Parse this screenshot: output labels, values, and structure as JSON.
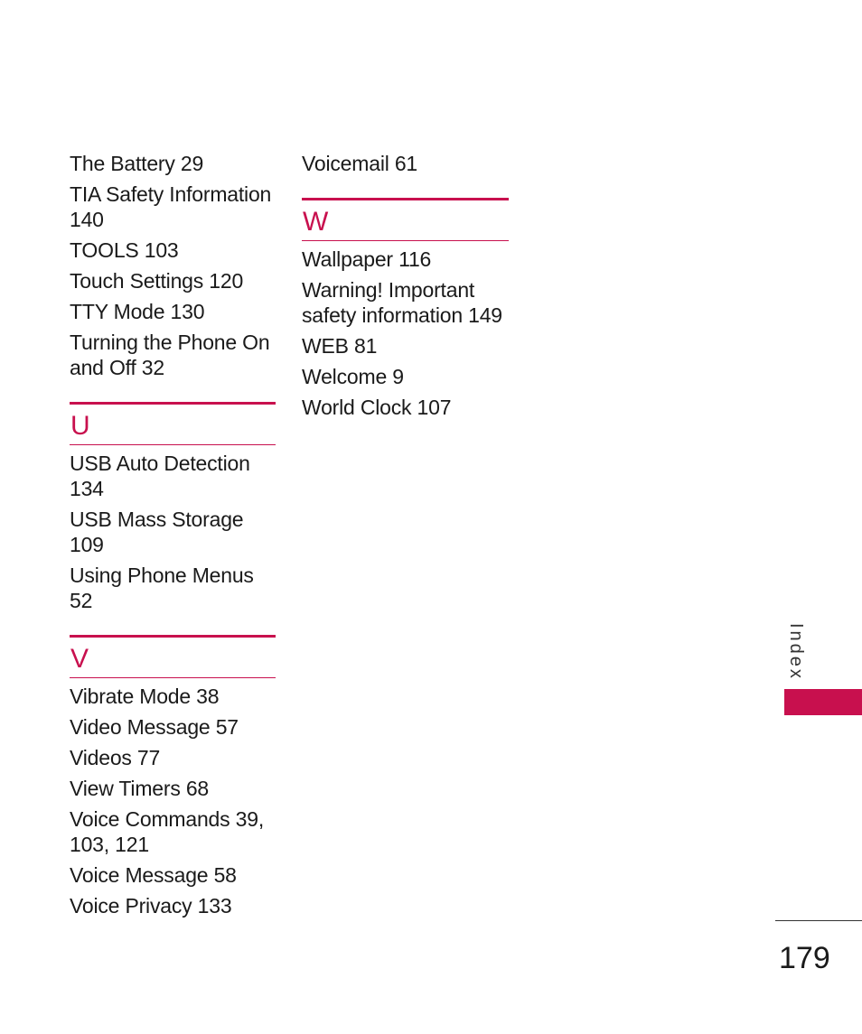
{
  "columns": {
    "left": {
      "top_entries": [
        "The Battery 29",
        "TIA Safety Information 140",
        "TOOLS 103",
        "Touch Settings 120",
        "TTY Mode 130",
        "Turning the Phone On and Off 32"
      ],
      "sections": [
        {
          "letter": "U",
          "entries": [
            "USB Auto Detection 134",
            "USB Mass Storage 109",
            "Using Phone Menus 52"
          ]
        },
        {
          "letter": "V",
          "entries": [
            "Vibrate Mode 38",
            "Video Message 57",
            "Videos 77",
            "View Timers 68",
            "Voice Commands 39, 103, 121",
            "Voice Message 58",
            "Voice Privacy 133"
          ]
        }
      ]
    },
    "right": {
      "top_entries": [
        "Voicemail 61"
      ],
      "sections": [
        {
          "letter": "W",
          "entries": [
            "Wallpaper 116",
            "Warning! Important safety information 149",
            "WEB 81",
            "Welcome 9",
            "World Clock 107"
          ]
        }
      ]
    }
  },
  "side_tab": {
    "label": "Index",
    "color": "#c8104e"
  },
  "page_number": "179",
  "colors": {
    "accent": "#c8104e",
    "text": "#1a1a1a"
  }
}
